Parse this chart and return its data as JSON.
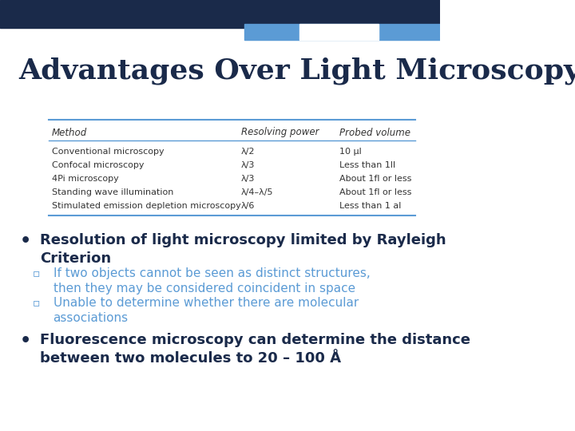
{
  "title": "Advantages Over Light Microscopy",
  "title_color": "#1a2a4a",
  "bg_color": "#ffffff",
  "header_bar_dark": "#1a2a4a",
  "header_bar_light": "#5b9bd5",
  "header_bar_white": "#ffffff",
  "table_headers": [
    "Method",
    "Resolving power",
    "Probed volume"
  ],
  "table_rows": [
    [
      "Conventional microscopy",
      "λ/2",
      "10 μl"
    ],
    [
      "Confocal microscopy",
      "λ/3",
      "Less than 1ll"
    ],
    [
      "4Pi microscopy",
      "λ/3",
      "About 1fl or less"
    ],
    [
      "Standing wave illumination",
      "λ/4–λ/5",
      "About 1fl or less"
    ],
    [
      "Stimulated emission depletion microscopy",
      "λ/6",
      "Less than 1 al"
    ]
  ],
  "table_line_color": "#5b9bd5",
  "bullet1_main": "Resolution of light microscopy limited by Rayleigh\nCriterion",
  "bullet1_sub1": "If two objects cannot be seen as distinct structures,\nthen they may be considered coincident in space",
  "bullet1_sub2": "Unable to determine whether there are molecular\nassociations",
  "bullet2_main": "Fluorescence microscopy can determine the distance\nbetween two molecules to 20 – 100 Å",
  "bullet_color": "#1a2a4a",
  "sub_bullet_color": "#5b9bd5",
  "bullet_symbol": "•",
  "sub_bullet_symbol": "▫"
}
